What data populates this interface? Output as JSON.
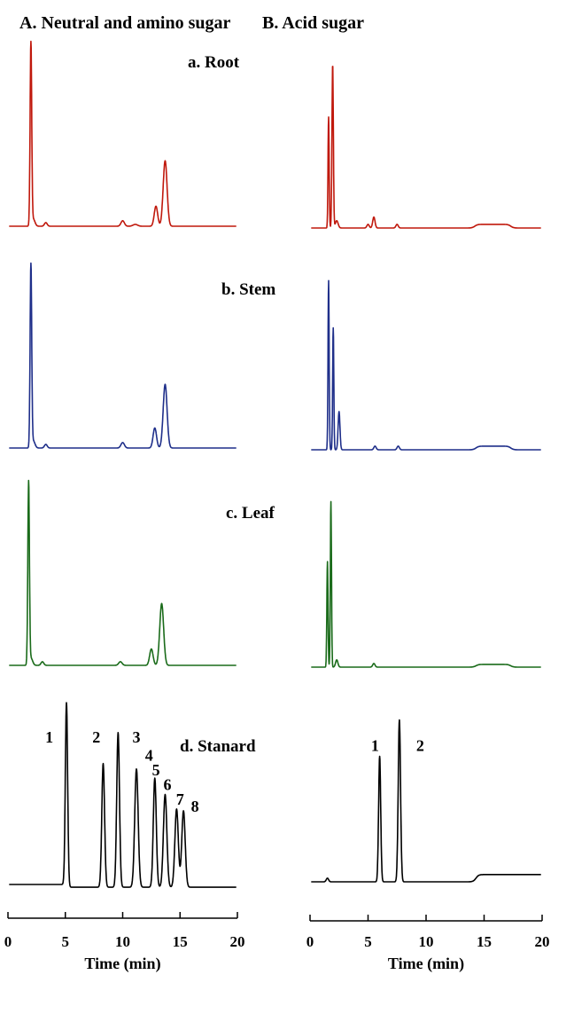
{
  "chart_data": [
    {
      "type": "line",
      "column": "A",
      "column_title": "A. Neutral and amino sugar",
      "xlabel": "Time (min)",
      "xlim": [
        0,
        20
      ],
      "x_ticks": [
        "0",
        "5",
        "10",
        "15",
        "20"
      ],
      "ylabel": "",
      "panels": [
        {
          "id": "a",
          "label": "a. Root",
          "color": "#c0180c",
          "peaks": [
            [
              2.0,
              100,
              0.07
            ],
            [
              2.2,
              4,
              0.15
            ],
            [
              3.3,
              2,
              0.12
            ],
            [
              10.0,
              3,
              0.15
            ],
            [
              11.1,
              1,
              0.2
            ],
            [
              12.9,
              11,
              0.15
            ],
            [
              13.7,
              36,
              0.17
            ]
          ],
          "steps": []
        },
        {
          "id": "b",
          "label": "b. Stem",
          "color": "#1f2f8a",
          "peaks": [
            [
              2.0,
              100,
              0.07
            ],
            [
              2.2,
              4,
              0.15
            ],
            [
              3.3,
              2,
              0.12
            ],
            [
              10.0,
              3,
              0.15
            ],
            [
              12.8,
              11,
              0.15
            ],
            [
              13.7,
              35,
              0.17
            ]
          ],
          "steps": []
        },
        {
          "id": "c",
          "label": "c. Leaf",
          "color": "#1a6b1a",
          "peaks": [
            [
              1.8,
              100,
              0.07
            ],
            [
              2.0,
              4,
              0.15
            ],
            [
              3.0,
              2,
              0.12
            ],
            [
              9.8,
              2,
              0.15
            ],
            [
              12.5,
              9,
              0.15
            ],
            [
              13.4,
              34,
              0.17
            ]
          ],
          "steps": []
        },
        {
          "id": "d",
          "label": "d. Stanard",
          "color": "#000000",
          "peaks": [
            [
              5.1,
              100,
              0.1
            ],
            [
              8.3,
              68,
              0.12
            ],
            [
              9.6,
              85,
              0.12
            ],
            [
              11.2,
              65,
              0.15
            ],
            [
              12.8,
              60,
              0.13
            ],
            [
              13.7,
              51,
              0.15
            ],
            [
              14.7,
              43,
              0.15
            ],
            [
              15.3,
              42,
              0.15
            ]
          ],
          "steps": [],
          "baseline_shift": [
            [
              5.3,
              -1.5
            ]
          ],
          "peak_labels": [
            {
              "text": "1",
              "t": 3.6,
              "y": 78
            },
            {
              "text": "2",
              "t": 7.7,
              "y": 78
            },
            {
              "text": "3",
              "t": 11.2,
              "y": 78
            },
            {
              "text": "4",
              "t": 12.3,
              "y": 68
            },
            {
              "text": "5",
              "t": 12.9,
              "y": 60
            },
            {
              "text": "6",
              "t": 13.9,
              "y": 52
            },
            {
              "text": "7",
              "t": 15.0,
              "y": 44
            },
            {
              "text": "8",
              "t": 16.3,
              "y": 40
            }
          ]
        }
      ]
    },
    {
      "type": "line",
      "column": "B",
      "column_title": "B. Acid sugar",
      "xlabel": "Time (min)",
      "xlim": [
        0,
        20
      ],
      "x_ticks": [
        "0",
        "5",
        "10",
        "15",
        "20"
      ],
      "ylabel": "",
      "panels": [
        {
          "id": "a",
          "label": "",
          "color": "#c0180c",
          "peaks": [
            [
              1.6,
              61,
              0.05
            ],
            [
              1.95,
              90,
              0.06
            ],
            [
              2.3,
              4,
              0.12
            ],
            [
              5.0,
              2,
              0.1
            ],
            [
              5.5,
              6,
              0.1
            ],
            [
              7.5,
              2,
              0.1
            ]
          ],
          "steps": [
            [
              14.2,
              17.3,
              2
            ]
          ]
        },
        {
          "id": "b",
          "label": "",
          "color": "#1f2f8a",
          "peaks": [
            [
              1.6,
              93,
              0.05
            ],
            [
              2.0,
              67,
              0.05
            ],
            [
              2.5,
              21,
              0.08
            ],
            [
              5.6,
              2,
              0.1
            ],
            [
              7.6,
              2,
              0.1
            ]
          ],
          "steps": [
            [
              14.3,
              17.3,
              2
            ]
          ]
        },
        {
          "id": "c",
          "label": "",
          "color": "#1a6b1a",
          "peaks": [
            [
              1.5,
              58,
              0.05
            ],
            [
              1.8,
              91,
              0.05
            ],
            [
              2.3,
              4,
              0.1
            ],
            [
              5.5,
              2,
              0.1
            ]
          ],
          "steps": [
            [
              14.3,
              17.3,
              1.5
            ]
          ]
        },
        {
          "id": "d",
          "label": "",
          "color": "#000000",
          "peaks": [
            [
              6.0,
              69,
              0.09
            ],
            [
              7.7,
              89,
              0.1
            ],
            [
              1.5,
              2,
              0.1
            ]
          ],
          "steps": [
            [
              14.3,
              25,
              4
            ]
          ],
          "peak_labels": [
            {
              "text": "1",
              "t": 5.6,
              "y": 72
            },
            {
              "text": "2",
              "t": 9.5,
              "y": 72
            }
          ]
        }
      ]
    }
  ]
}
